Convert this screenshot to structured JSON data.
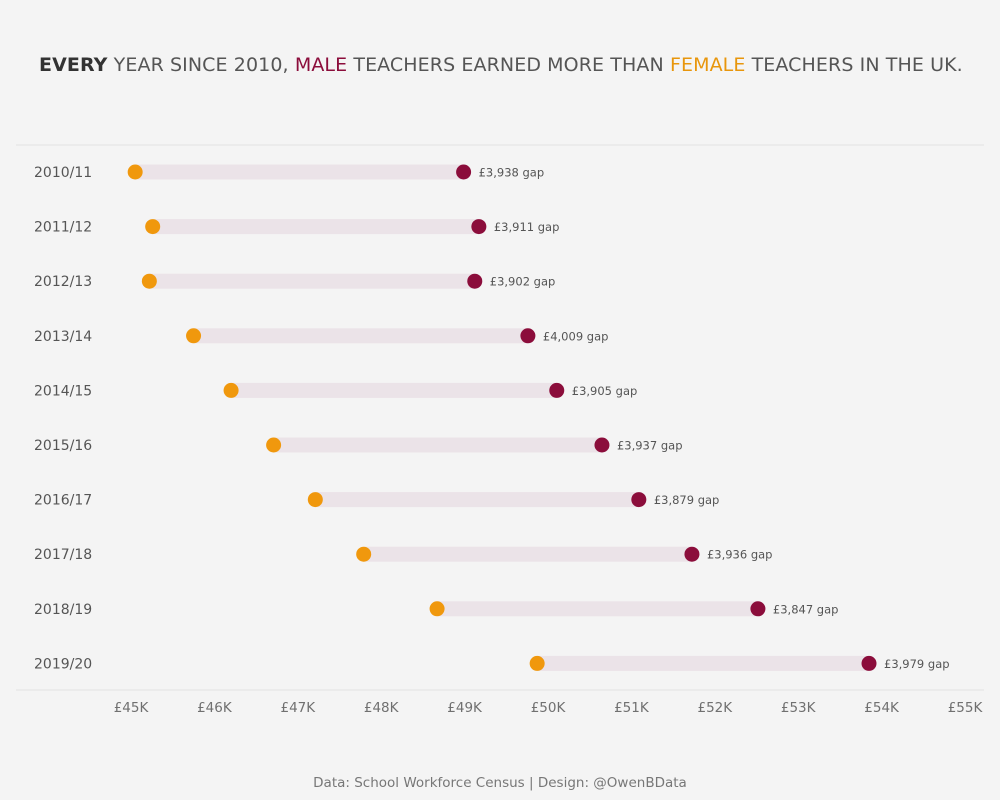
{
  "title": {
    "seg1": "EVERY",
    "seg2": " YEAR  SINCE 2010, ",
    "seg3": "MALE",
    "seg4": " TEACHERS EARNED MORE THAN ",
    "seg5": "FEMALE",
    "seg6": " TEACHERS IN THE UK."
  },
  "footer": "Data: School Workforce Census  |  Design: @OwenBData",
  "colors": {
    "male": "#8b0d3b",
    "female": "#f0980d",
    "bar": "#ebe3e8",
    "text": "#555555",
    "axis_rule": "#e2e2e2"
  },
  "chart_data": {
    "type": "dumbbell",
    "categories": [
      "2010/11",
      "2011/12",
      "2012/13",
      "2013/14",
      "2014/15",
      "2015/16",
      "2016/17",
      "2017/18",
      "2018/19",
      "2019/20"
    ],
    "series": [
      {
        "name": "FEMALE",
        "values": [
          45050,
          45260,
          45220,
          45750,
          46200,
          46710,
          47210,
          47790,
          48670,
          49870
        ]
      },
      {
        "name": "MALE",
        "values": [
          48988,
          49171,
          49122,
          49759,
          50105,
          50647,
          51089,
          51726,
          52517,
          53849
        ]
      }
    ],
    "gap_labels": [
      "£3,938 gap",
      "£3,911 gap",
      "£3,902 gap",
      "£4,009 gap",
      "£3,905 gap",
      "£3,937 gap",
      "£3,879 gap",
      "£3,936 gap",
      "£3,847 gap",
      "£3,979 gap"
    ],
    "x_ticks": [
      45000,
      46000,
      47000,
      48000,
      49000,
      50000,
      51000,
      52000,
      53000,
      54000,
      55000
    ],
    "x_tick_labels": [
      "£45K",
      "£46K",
      "£47K",
      "£48K",
      "£49K",
      "£50K",
      "£51K",
      "£52K",
      "£53K",
      "£54K",
      "£55K"
    ],
    "xlim": [
      45000,
      55000
    ],
    "xlabel": "",
    "ylabel": "",
    "grid": false
  }
}
